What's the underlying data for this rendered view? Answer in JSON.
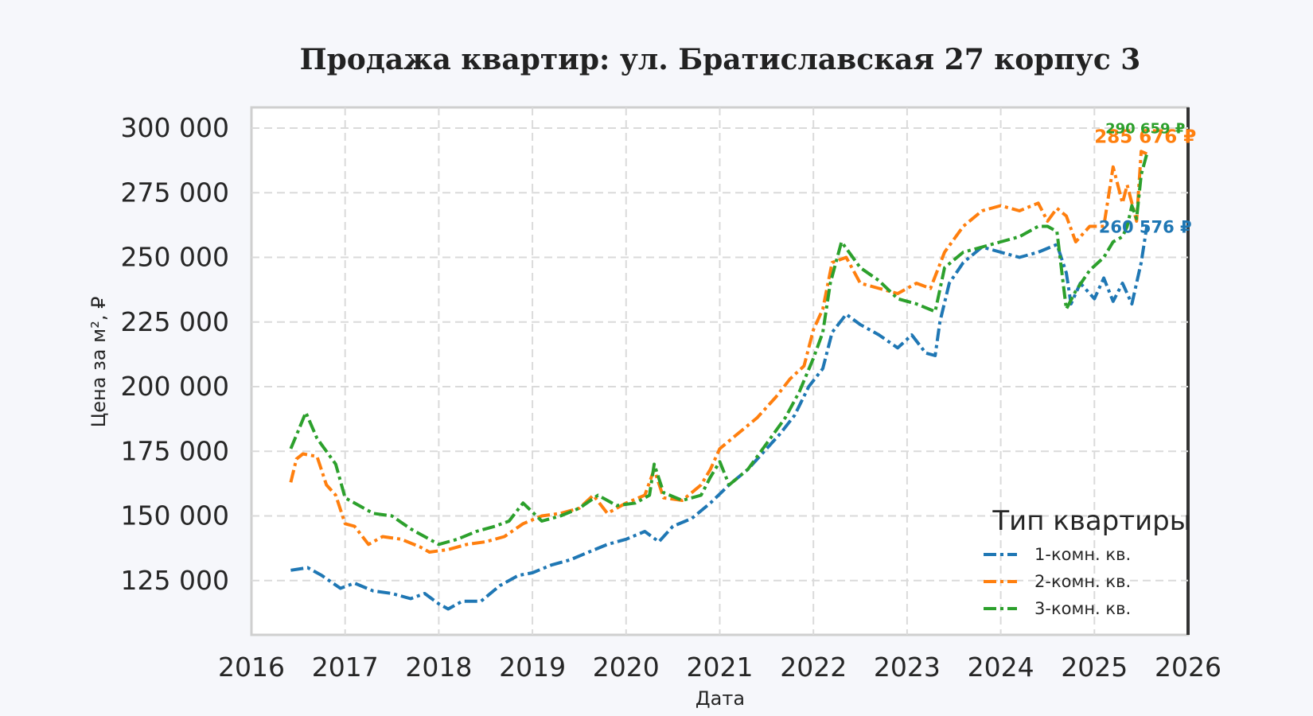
{
  "chart_data": {
    "type": "line",
    "title": "Продажа квартир: ул. Братиславская 27 корпус 3",
    "xlabel": "Дата",
    "ylabel": "Цена за м², ₽",
    "xlim": [
      2016,
      2026
    ],
    "ylim": [
      104000,
      308000
    ],
    "x_ticks": [
      "2016",
      "2017",
      "2018",
      "2019",
      "2020",
      "2021",
      "2022",
      "2023",
      "2024",
      "2025",
      "2026"
    ],
    "y_ticks": [
      {
        "value": 125000,
        "label": "125 000"
      },
      {
        "value": 150000,
        "label": "150 000"
      },
      {
        "value": 175000,
        "label": "175 000"
      },
      {
        "value": 200000,
        "label": "200 000"
      },
      {
        "value": 225000,
        "label": "225 000"
      },
      {
        "value": 250000,
        "label": "250 000"
      },
      {
        "value": 275000,
        "label": "275 000"
      },
      {
        "value": 300000,
        "label": "300 000"
      }
    ],
    "grid": true,
    "legend": {
      "title": "Тип квартиры",
      "position": "bottom-right"
    },
    "series": [
      {
        "name": "1-комн. кв.",
        "color": "#1f77b4",
        "end_label": "260 576 ₽",
        "x": [
          2016.42,
          2016.6,
          2016.75,
          2016.95,
          2017.1,
          2017.3,
          2017.5,
          2017.7,
          2017.85,
          2018.0,
          2018.1,
          2018.25,
          2018.45,
          2018.65,
          2018.85,
          2019.0,
          2019.2,
          2019.4,
          2019.6,
          2019.8,
          2020.0,
          2020.2,
          2020.35,
          2020.5,
          2020.7,
          2020.9,
          2021.1,
          2021.3,
          2021.5,
          2021.65,
          2021.8,
          2021.95,
          2022.1,
          2022.2,
          2022.35,
          2022.5,
          2022.7,
          2022.9,
          2023.05,
          2023.2,
          2023.3,
          2023.35,
          2023.45,
          2023.6,
          2023.8,
          2024.0,
          2024.2,
          2024.4,
          2024.6,
          2024.7,
          2024.75,
          2024.85,
          2025.0,
          2025.1,
          2025.2,
          2025.3,
          2025.4,
          2025.5,
          2025.56
        ],
        "y": [
          129000,
          130000,
          127000,
          122000,
          124000,
          121000,
          120000,
          118000,
          120000,
          116000,
          114000,
          117000,
          117000,
          123000,
          127000,
          128000,
          131000,
          133000,
          136000,
          139000,
          141000,
          144000,
          140000,
          146000,
          149000,
          155000,
          162000,
          168000,
          176000,
          182000,
          189000,
          200000,
          207000,
          221000,
          228000,
          224000,
          220000,
          215000,
          220000,
          213000,
          212000,
          225000,
          240000,
          248000,
          254000,
          252000,
          250000,
          252000,
          255000,
          244000,
          232000,
          240000,
          234000,
          242000,
          233000,
          240000,
          232000,
          248000,
          262000
        ]
      },
      {
        "name": "2-комн. кв.",
        "color": "#ff7f0e",
        "end_label": "285 676 ₽",
        "x": [
          2016.42,
          2016.48,
          2016.55,
          2016.7,
          2016.8,
          2016.9,
          2017.0,
          2017.1,
          2017.25,
          2017.4,
          2017.6,
          2017.8,
          2017.9,
          2018.1,
          2018.3,
          2018.5,
          2018.7,
          2018.9,
          2019.1,
          2019.3,
          2019.5,
          2019.65,
          2019.8,
          2020.0,
          2020.2,
          2020.3,
          2020.4,
          2020.6,
          2020.8,
          2020.9,
          2021.0,
          2021.2,
          2021.4,
          2021.6,
          2021.75,
          2021.9,
          2022.0,
          2022.1,
          2022.2,
          2022.35,
          2022.5,
          2022.7,
          2022.9,
          2023.1,
          2023.25,
          2023.4,
          2023.6,
          2023.8,
          2024.0,
          2024.2,
          2024.4,
          2024.5,
          2024.6,
          2024.7,
          2024.8,
          2024.95,
          2025.1,
          2025.2,
          2025.3,
          2025.35,
          2025.45,
          2025.5,
          2025.56
        ],
        "y": [
          163000,
          172000,
          174000,
          173000,
          162000,
          158000,
          147000,
          146000,
          139000,
          142000,
          141000,
          138000,
          136000,
          137000,
          139000,
          140000,
          142000,
          147000,
          150000,
          151000,
          153000,
          158000,
          151000,
          155000,
          158000,
          168000,
          157000,
          156000,
          162000,
          168000,
          176000,
          182000,
          188000,
          196000,
          203000,
          208000,
          222000,
          230000,
          248000,
          250000,
          240000,
          238000,
          236000,
          240000,
          238000,
          252000,
          262000,
          268000,
          270000,
          268000,
          271000,
          264000,
          269000,
          266000,
          256000,
          262000,
          262000,
          285000,
          271000,
          278000,
          264000,
          291000,
          290000
        ]
      },
      {
        "name": "3-комн. кв.",
        "color": "#2ca02c",
        "end_label": "290 659 ₽",
        "x": [
          2016.42,
          2016.5,
          2016.58,
          2016.7,
          2016.9,
          2017.0,
          2017.1,
          2017.3,
          2017.5,
          2017.7,
          2017.9,
          2018.0,
          2018.2,
          2018.4,
          2018.6,
          2018.75,
          2018.9,
          2019.1,
          2019.3,
          2019.5,
          2019.7,
          2019.9,
          2020.1,
          2020.25,
          2020.3,
          2020.4,
          2020.6,
          2020.8,
          2020.9,
          2021.0,
          2021.1,
          2021.3,
          2021.5,
          2021.7,
          2021.85,
          2022.0,
          2022.1,
          2022.18,
          2022.3,
          2022.5,
          2022.7,
          2022.9,
          2023.1,
          2023.3,
          2023.4,
          2023.6,
          2023.8,
          2024.0,
          2024.2,
          2024.4,
          2024.5,
          2024.6,
          2024.7,
          2024.8,
          2024.95,
          2025.1,
          2025.2,
          2025.3,
          2025.35,
          2025.4,
          2025.45,
          2025.5,
          2025.56
        ],
        "y": [
          176000,
          183000,
          190000,
          180000,
          170000,
          157000,
          155000,
          151000,
          150000,
          145000,
          141000,
          139000,
          141000,
          144000,
          146000,
          148000,
          155000,
          148000,
          150000,
          153000,
          158000,
          154000,
          155000,
          158000,
          170000,
          159000,
          156000,
          158000,
          165000,
          171000,
          162000,
          168000,
          178000,
          188000,
          198000,
          211000,
          221000,
          240000,
          256000,
          246000,
          241000,
          234000,
          232000,
          229000,
          246000,
          252000,
          254000,
          256000,
          258000,
          262000,
          262000,
          260000,
          230000,
          237000,
          245000,
          250000,
          256000,
          258000,
          262000,
          270000,
          265000,
          282000,
          290000
        ]
      }
    ]
  }
}
